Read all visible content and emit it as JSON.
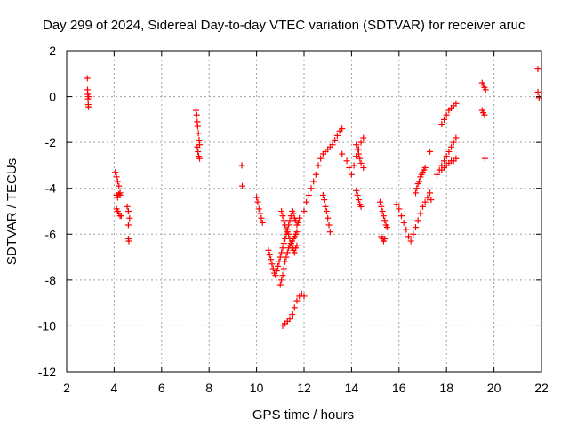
{
  "chart_data": {
    "type": "scatter",
    "title": "Day 299 of 2024, Sidereal Day-to-day VTEC variation (SDTVAR) for receiver aruc",
    "xlabel": "GPS time / hours",
    "ylabel": "SDTVAR / TECUs",
    "xlim": [
      2,
      22
    ],
    "ylim": [
      -12,
      2
    ],
    "xticks": [
      "2",
      "4",
      "6",
      "8",
      "10",
      "12",
      "14",
      "16",
      "18",
      "20",
      "22"
    ],
    "yticks": [
      "2",
      "0",
      "-2",
      "-4",
      "-6",
      "-8",
      "-10",
      "-12"
    ],
    "grid": true,
    "marker": "+",
    "color": "#ff0000",
    "series": [
      {
        "name": "SDTVAR",
        "x": [
          2.87,
          2.88,
          2.89,
          2.9,
          2.91,
          2.92,
          2.93,
          4.05,
          4.1,
          4.15,
          4.2,
          4.25,
          4.1,
          4.15,
          4.2,
          4.25,
          4.1,
          4.15,
          4.2,
          4.25,
          4.3,
          4.55,
          4.6,
          4.65,
          4.6,
          4.6,
          4.62,
          7.45,
          7.48,
          7.5,
          7.52,
          7.55,
          7.58,
          7.6,
          7.5,
          7.53,
          7.56,
          7.6,
          9.38,
          9.4,
          10.0,
          10.05,
          10.1,
          10.15,
          10.2,
          10.25,
          10.5,
          10.55,
          10.6,
          10.65,
          10.7,
          10.75,
          10.8,
          10.85,
          10.9,
          10.95,
          11.0,
          11.05,
          11.1,
          11.15,
          11.2,
          11.25,
          11.3,
          11.35,
          11.4,
          11.45,
          11.5,
          11.55,
          11.6,
          11.65,
          11.7,
          11.75,
          11.8,
          11.0,
          11.05,
          11.1,
          11.15,
          11.2,
          11.25,
          11.3,
          11.35,
          11.4,
          11.45,
          11.5,
          11.55,
          11.6,
          11.65,
          11.7,
          11.1,
          11.2,
          11.3,
          11.4,
          11.5,
          11.6,
          11.7,
          11.8,
          11.9,
          12.0,
          11.05,
          11.1,
          11.15,
          11.2,
          11.25,
          11.3,
          11.35,
          11.4,
          11.45,
          11.5,
          11.55,
          11.6,
          11.65,
          11.7,
          12.0,
          12.1,
          12.2,
          12.3,
          12.4,
          12.5,
          12.6,
          12.7,
          12.8,
          12.9,
          13.0,
          13.1,
          13.2,
          13.3,
          13.4,
          13.5,
          13.6,
          12.8,
          12.85,
          12.9,
          12.95,
          13.0,
          13.05,
          13.1,
          13.6,
          13.8,
          13.9,
          14.0,
          14.1,
          14.2,
          14.3,
          14.4,
          14.5,
          14.2,
          14.25,
          14.3,
          14.35,
          14.4,
          14.2,
          14.25,
          14.3,
          14.35,
          14.4,
          14.5,
          15.2,
          15.25,
          15.3,
          15.35,
          15.4,
          15.45,
          15.5,
          15.25,
          15.3,
          15.35,
          15.4,
          15.9,
          16.0,
          16.1,
          16.2,
          16.3,
          16.4,
          16.5,
          16.6,
          16.7,
          16.8,
          16.9,
          17.0,
          17.1,
          17.2,
          17.3,
          16.7,
          16.75,
          16.8,
          16.85,
          16.9,
          16.95,
          17.0,
          17.05,
          17.1,
          17.3,
          17.35,
          17.6,
          17.7,
          17.8,
          17.9,
          18.0,
          18.1,
          18.2,
          18.3,
          18.4,
          17.8,
          17.9,
          18.0,
          18.1,
          18.2,
          18.3,
          18.4,
          17.8,
          17.9,
          18.0,
          18.1,
          18.2,
          18.3,
          18.4,
          19.5,
          19.55,
          19.6,
          19.65,
          19.5,
          19.55,
          19.6,
          19.62,
          21.85,
          21.85,
          21.9
        ],
        "y": [
          0.8,
          0.3,
          0.1,
          -0.1,
          -0.35,
          -0.45,
          0.0,
          -3.3,
          -3.5,
          -3.7,
          -3.9,
          -4.2,
          -4.3,
          -4.4,
          -4.25,
          -4.3,
          -4.9,
          -5.0,
          -5.1,
          -5.2,
          -5.2,
          -4.8,
          -5.0,
          -5.3,
          -5.6,
          -6.2,
          -6.3,
          -0.6,
          -0.8,
          -1.1,
          -1.3,
          -1.6,
          -1.9,
          -2.1,
          -2.2,
          -2.4,
          -2.6,
          -2.7,
          -3.0,
          -3.9,
          -4.4,
          -4.6,
          -4.9,
          -5.1,
          -5.3,
          -5.5,
          -6.7,
          -6.9,
          -7.1,
          -7.3,
          -7.5,
          -7.7,
          -7.8,
          -7.6,
          -7.4,
          -7.2,
          -7.0,
          -6.8,
          -6.6,
          -6.4,
          -6.2,
          -6.0,
          -5.8,
          -5.6,
          -5.4,
          -5.2,
          -5.0,
          -5.1,
          -5.3,
          -5.4,
          -5.6,
          -5.5,
          -5.3,
          -8.2,
          -8.0,
          -7.8,
          -7.5,
          -7.2,
          -7.0,
          -6.8,
          -6.6,
          -6.5,
          -6.4,
          -6.3,
          -6.2,
          -6.1,
          -6.0,
          -5.9,
          -10.0,
          -9.9,
          -9.8,
          -9.7,
          -9.5,
          -9.2,
          -8.9,
          -8.7,
          -8.6,
          -8.7,
          -5.0,
          -5.2,
          -5.4,
          -5.6,
          -5.8,
          -5.9,
          -6.0,
          -6.2,
          -6.4,
          -6.6,
          -6.7,
          -6.8,
          -6.6,
          -6.5,
          -5.0,
          -4.6,
          -4.3,
          -4.0,
          -3.7,
          -3.4,
          -3.0,
          -2.7,
          -2.5,
          -2.4,
          -2.3,
          -2.2,
          -2.1,
          -1.9,
          -1.7,
          -1.5,
          -1.4,
          -4.3,
          -4.5,
          -4.8,
          -5.0,
          -5.3,
          -5.6,
          -5.9,
          -2.5,
          -2.8,
          -3.1,
          -3.4,
          -3.0,
          -2.6,
          -2.3,
          -2.0,
          -1.8,
          -4.1,
          -4.3,
          -4.5,
          -4.7,
          -4.8,
          -2.1,
          -2.3,
          -2.5,
          -2.7,
          -2.9,
          -3.1,
          -4.6,
          -4.8,
          -5.0,
          -5.2,
          -5.4,
          -5.6,
          -5.7,
          -6.1,
          -6.2,
          -6.3,
          -6.2,
          -4.7,
          -4.9,
          -5.2,
          -5.5,
          -5.8,
          -6.1,
          -6.3,
          -6.0,
          -5.7,
          -5.4,
          -5.1,
          -4.8,
          -4.6,
          -4.4,
          -4.2,
          -4.2,
          -4.0,
          -3.8,
          -3.7,
          -3.5,
          -3.4,
          -3.3,
          -3.2,
          -3.1,
          -2.4,
          -4.5,
          -3.4,
          -3.2,
          -3.0,
          -2.8,
          -2.6,
          -2.4,
          -2.2,
          -2.0,
          -1.8,
          -1.2,
          -1.0,
          -0.8,
          -0.6,
          -0.5,
          -0.4,
          -0.3,
          -3.2,
          -3.1,
          -3.0,
          -2.9,
          -2.8,
          -2.8,
          -2.7,
          0.6,
          0.5,
          0.4,
          0.3,
          -0.6,
          -0.7,
          -0.8,
          -2.7,
          1.2,
          0.2,
          -0.05
        ]
      }
    ]
  }
}
